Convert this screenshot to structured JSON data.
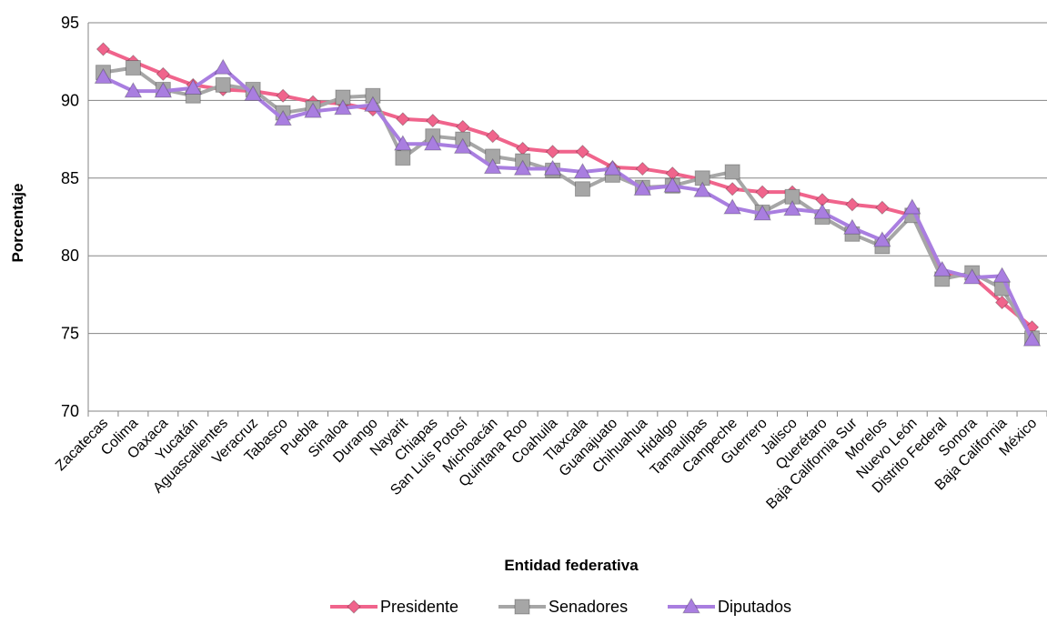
{
  "chart_data": {
    "type": "line",
    "xlabel": "Entidad federativa",
    "ylabel": "Porcentaje",
    "ylim": [
      70,
      95
    ],
    "yticks": [
      70,
      75,
      80,
      85,
      90,
      95
    ],
    "grid": "horizontal",
    "legend_position": "bottom",
    "categories": [
      "Zacatecas",
      "Colima",
      "Oaxaca",
      "Yucatán",
      "Aguascalientes",
      "Veracruz",
      "Tabasco",
      "Puebla",
      "Sinaloa",
      "Durango",
      "Nayarit",
      "Chiapas",
      "San Luis Potosí",
      "Michoacán",
      "Quintana Roo",
      "Coahuila",
      "Tlaxcala",
      "Guanajuato",
      "Chihuahua",
      "Hidalgo",
      "Tamaulipas",
      "Campeche",
      "Guerrero",
      "Jalisco",
      "Querétaro",
      "Baja California Sur",
      "Morelos",
      "Nuevo León",
      "Distrito Federal",
      "Sonora",
      "Baja California",
      "México"
    ],
    "series": [
      {
        "name": "Presidente",
        "color": "#f0648c",
        "marker": "diamond",
        "values": [
          93.3,
          92.5,
          91.7,
          91.0,
          90.7,
          90.6,
          90.3,
          89.9,
          89.8,
          89.4,
          88.8,
          88.7,
          88.3,
          87.7,
          86.9,
          86.7,
          86.7,
          85.7,
          85.6,
          85.3,
          84.9,
          84.3,
          84.1,
          84.1,
          83.6,
          83.3,
          83.1,
          82.6,
          78.8,
          78.7,
          77.0,
          75.4
        ]
      },
      {
        "name": "Senadores",
        "color": "#a6a6a6",
        "marker": "square",
        "values": [
          91.8,
          92.1,
          90.7,
          90.3,
          91.0,
          90.7,
          89.2,
          89.5,
          90.2,
          90.3,
          86.3,
          87.7,
          87.5,
          86.4,
          86.1,
          85.5,
          84.3,
          85.2,
          84.4,
          84.5,
          85.0,
          85.4,
          82.8,
          83.8,
          82.5,
          81.4,
          80.6,
          82.6,
          78.5,
          78.9,
          77.9,
          74.7
        ]
      },
      {
        "name": "Diputados",
        "color": "#a97ee0",
        "marker": "triangle",
        "values": [
          91.5,
          90.6,
          90.6,
          90.8,
          92.1,
          90.4,
          88.8,
          89.3,
          89.5,
          89.7,
          87.2,
          87.2,
          87.0,
          85.7,
          85.6,
          85.6,
          85.4,
          85.6,
          84.3,
          84.5,
          84.2,
          83.1,
          82.7,
          83.0,
          82.8,
          81.8,
          81.0,
          83.1,
          79.1,
          78.6,
          78.7,
          74.6
        ]
      }
    ]
  }
}
